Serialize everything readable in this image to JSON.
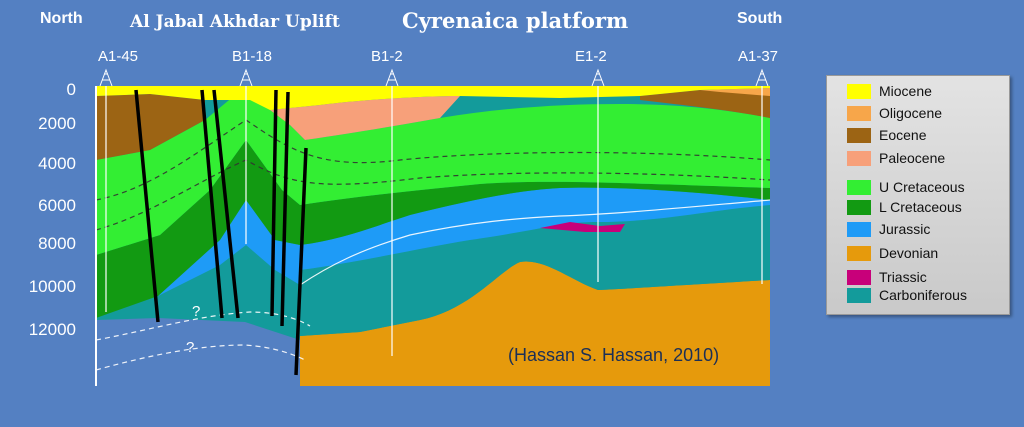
{
  "header": {
    "north": "North",
    "south": "South",
    "uplift_title": "Al Jabal Akhdar Uplift",
    "platform_title": "Cyrenaica platform"
  },
  "wells": [
    "A1-45",
    "B1-18",
    "B1-2",
    "E1-2",
    "A1-37"
  ],
  "depth_labels": [
    "0",
    "2000",
    "4000",
    "6000",
    "8000",
    "10000",
    "12000"
  ],
  "question_marks": [
    "?",
    "?"
  ],
  "citation": "(Hassan S. Hassan, 2010)",
  "legend": [
    {
      "label": "Miocene",
      "color": "#ffff00"
    },
    {
      "label": "Oligocene",
      "color": "#f7a64a"
    },
    {
      "label": "Eocene",
      "color": "#9c6414"
    },
    {
      "label": "Paleocene",
      "color": "#f7a07a"
    },
    {
      "label": "U Cretaceous",
      "color": "#33ee33"
    },
    {
      "label": "L Cretaceous",
      "color": "#129a12"
    },
    {
      "label": "Jurassic",
      "color": "#1e9bf7"
    },
    {
      "label": "Devonian",
      "color": "#e69a0c"
    },
    {
      "label": "Triassic",
      "color": "#c8007a"
    },
    {
      "label": "Carboniferous",
      "color": "#139b9b"
    }
  ]
}
